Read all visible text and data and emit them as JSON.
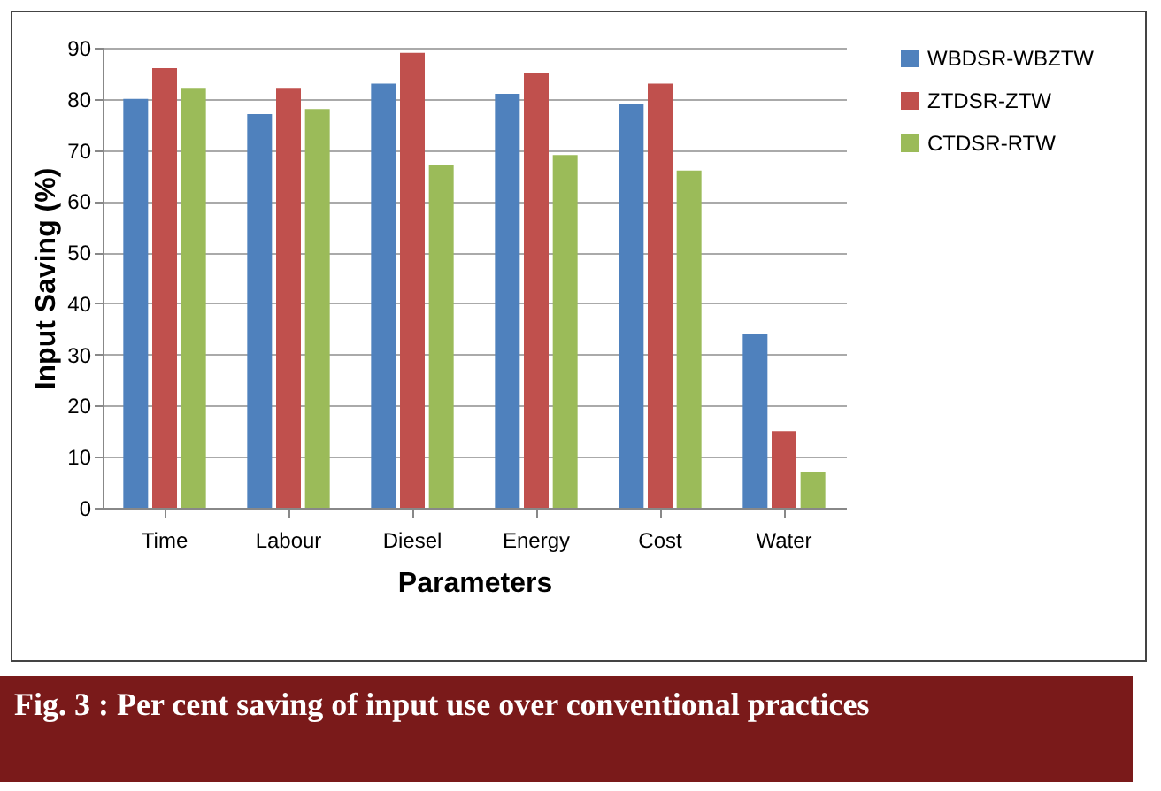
{
  "chart_data": {
    "type": "bar",
    "xlabel": "Parameters",
    "ylabel": "Input Saving (%)",
    "categories": [
      "Time",
      "Labour",
      "Diesel",
      "Energy",
      "Cost",
      "Water"
    ],
    "series": [
      {
        "name": "WBDSR-WBZTW",
        "color": "#4f81bd",
        "values": [
          80,
          77,
          83,
          81,
          79,
          34
        ]
      },
      {
        "name": "ZTDSR-ZTW",
        "color": "#c0504d",
        "values": [
          86,
          82,
          89,
          85,
          83,
          15
        ]
      },
      {
        "name": "CTDSR-RTW",
        "color": "#9bbb59",
        "values": [
          82,
          78,
          67,
          69,
          66,
          7
        ]
      }
    ],
    "ylim": [
      0,
      90
    ],
    "yticks": [
      0,
      10,
      20,
      30,
      40,
      50,
      60,
      70,
      80,
      90
    ],
    "grid": "y",
    "legend": "right",
    "annotations": [
      "Fig. 3 :  Per cent saving of input use over conventional practices"
    ]
  }
}
